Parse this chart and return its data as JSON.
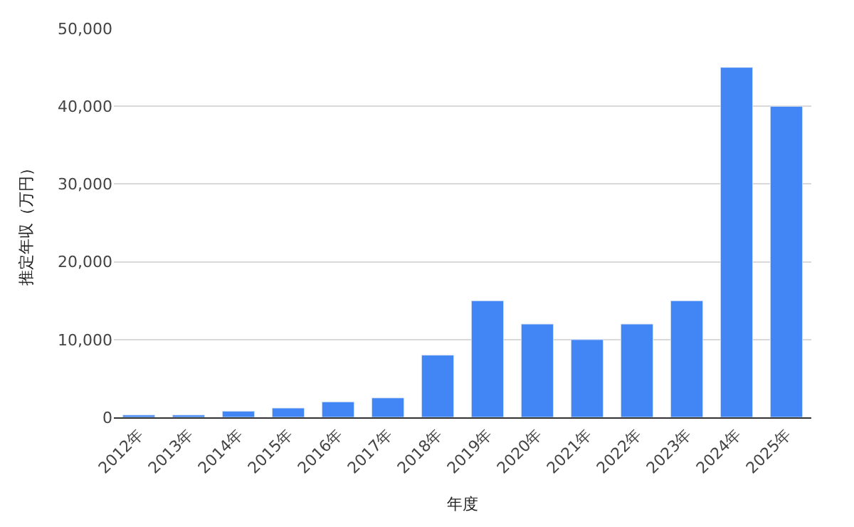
{
  "chart_data": {
    "type": "bar",
    "xlabel": "年度",
    "ylabel": "推定年収（万円）",
    "categories": [
      "2012年",
      "2013年",
      "2014年",
      "2015年",
      "2016年",
      "2017年",
      "2018年",
      "2019年",
      "2020年",
      "2021年",
      "2022年",
      "2023年",
      "2024年",
      "2025年"
    ],
    "values": [
      300,
      300,
      800,
      1200,
      2000,
      2500,
      8000,
      15000,
      12000,
      10000,
      12000,
      15000,
      45000,
      40000
    ],
    "color": "#4285f4",
    "ylim": [
      0,
      50000
    ],
    "yticks": [
      {
        "value": 0,
        "label": "0"
      },
      {
        "value": 10000,
        "label": "10,000"
      },
      {
        "value": 20000,
        "label": "20,000"
      },
      {
        "value": 30000,
        "label": "30,000"
      },
      {
        "value": 40000,
        "label": "40,000"
      },
      {
        "value": 50000,
        "label": "50,000"
      }
    ],
    "grid": "y"
  }
}
